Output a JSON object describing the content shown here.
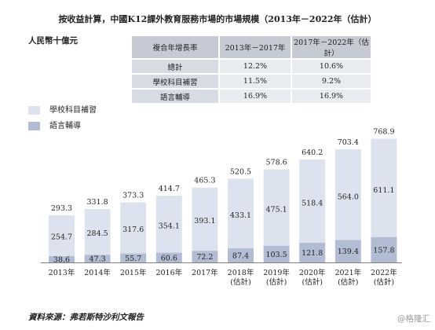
{
  "title": "按收益計算，中國K12課外教育服務市場的市場規模（2013年－2022年（估計）",
  "unit_label": "人民幣十億元",
  "cagr_table": {
    "headers": [
      "複合年增長率",
      "2013年－2017年",
      "2017年－2022年（估計）"
    ],
    "rows": [
      {
        "label": "總計",
        "v1": "12.2%",
        "v2": "10.6%"
      },
      {
        "label": "學校科目補習",
        "v1": "11.5%",
        "v2": "9.2%"
      },
      {
        "label": "語言輔導",
        "v1": "16.9%",
        "v2": "16.9%"
      }
    ]
  },
  "colors": {
    "school": "#dde3ee",
    "language": "#b2bdd3",
    "table_header": "#c5cad4"
  },
  "chart_data": {
    "type": "bar",
    "stacked": true,
    "categories": [
      "2013年",
      "2014年",
      "2015年",
      "2016年",
      "2017年",
      "2018年\n(估計)",
      "2019年\n(估計)",
      "2020年\n(估計)",
      "2021年\n(估計)",
      "2022年\n(估計)"
    ],
    "series": [
      {
        "name": "語言輔導",
        "values": [
          38.6,
          47.3,
          55.7,
          60.6,
          72.2,
          87.4,
          103.5,
          121.8,
          139.4,
          157.8
        ]
      },
      {
        "name": "學校科目補習",
        "values": [
          254.7,
          284.5,
          317.6,
          354.1,
          393.1,
          433.1,
          475.1,
          518.4,
          564.0,
          611.1
        ]
      }
    ],
    "totals": [
      293.3,
      331.8,
      373.3,
      414.7,
      465.3,
      520.5,
      578.6,
      640.2,
      703.4,
      768.9
    ],
    "legend": [
      "學校科目補習",
      "語言輔導"
    ],
    "legend_position": "top-left",
    "ylim": [
      0,
      800
    ],
    "grid": false
  },
  "source": "資料來源：弗若斯特沙利文報告",
  "watermark": "@格隆汇"
}
